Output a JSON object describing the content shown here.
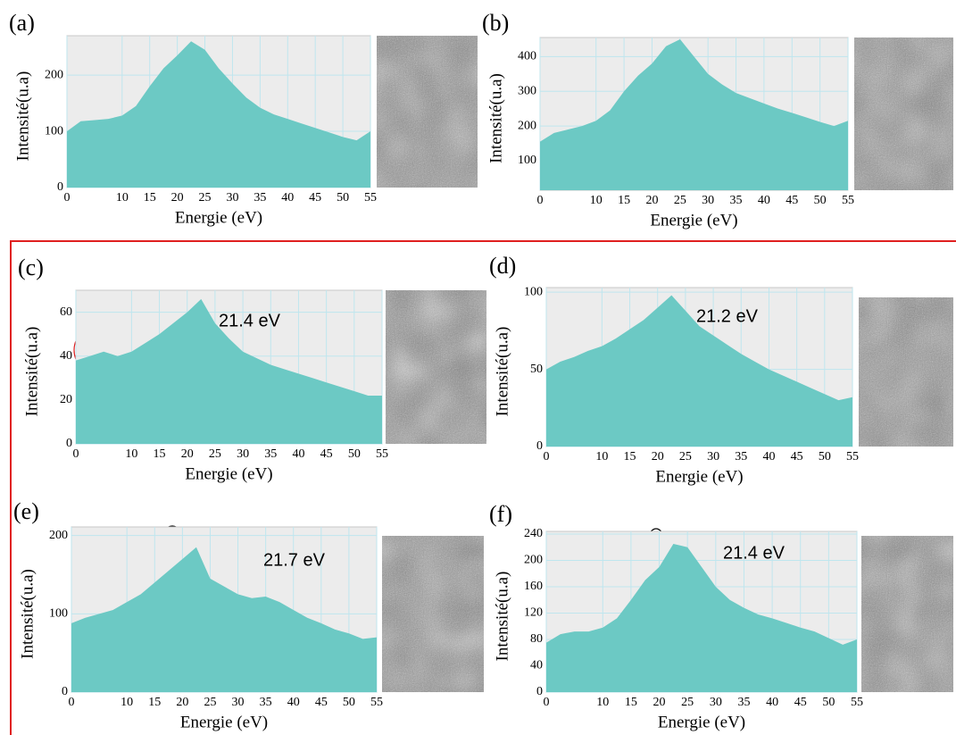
{
  "chart_data": [
    {
      "type": "area",
      "label": "(a)",
      "xlabel": "Energie (eV)",
      "ylabel": "Intensité(u.a)",
      "color": "#6cc9c4",
      "grid": true,
      "x": [
        0,
        2.5,
        5,
        7.5,
        10,
        12.5,
        15,
        17.5,
        20,
        22.5,
        25,
        27.5,
        30,
        32.5,
        35,
        37.5,
        40,
        42.5,
        45,
        47.5,
        50,
        52.5,
        55
      ],
      "values": [
        100,
        118,
        120,
        122,
        128,
        145,
        180,
        212,
        235,
        260,
        245,
        212,
        185,
        160,
        142,
        130,
        122,
        114,
        106,
        98,
        90,
        84,
        100
      ],
      "xlim": [
        0,
        55
      ],
      "xticks": [
        0,
        10,
        15,
        20,
        25,
        30,
        35,
        40,
        45,
        50,
        55
      ],
      "ylim": [
        0,
        270
      ],
      "yticks": [
        0,
        100,
        200
      ]
    },
    {
      "type": "area",
      "label": "(b)",
      "xlabel": "Energie (eV)",
      "ylabel": "Intensité(u.a)",
      "color": "#6cc9c4",
      "grid": true,
      "x": [
        0,
        2.5,
        5,
        7.5,
        10,
        12.5,
        15,
        17.5,
        20,
        22.5,
        25,
        27.5,
        30,
        32.5,
        35,
        37.5,
        40,
        42.5,
        45,
        47.5,
        50,
        52.5,
        55
      ],
      "values": [
        155,
        180,
        190,
        200,
        215,
        245,
        300,
        345,
        380,
        430,
        450,
        400,
        350,
        320,
        295,
        280,
        265,
        250,
        238,
        225,
        212,
        200,
        215
      ],
      "xlim": [
        0,
        55
      ],
      "xticks": [
        0,
        10,
        15,
        20,
        25,
        30,
        35,
        40,
        45,
        50,
        55
      ],
      "ylim": [
        15,
        455
      ],
      "yticks": [
        100,
        200,
        300,
        400
      ]
    },
    {
      "type": "area",
      "label": "(c)",
      "xlabel": "Energie (eV)",
      "ylabel": "Intensité(u.a)",
      "color": "#6cc9c4",
      "grid": true,
      "annotation": "21.4 eV",
      "x": [
        0,
        2.5,
        5,
        7.5,
        10,
        12.5,
        15,
        17.5,
        20,
        22.5,
        25,
        27.5,
        30,
        32.5,
        35,
        37.5,
        40,
        42.5,
        45,
        47.5,
        50,
        52.5,
        55
      ],
      "values": [
        38,
        40,
        42,
        40,
        42,
        46,
        50,
        55,
        60,
        66,
        55,
        48,
        42,
        39,
        36,
        34,
        32,
        30,
        28,
        26,
        24,
        22,
        22
      ],
      "xlim": [
        0,
        55
      ],
      "xticks": [
        0,
        10,
        15,
        20,
        25,
        30,
        35,
        40,
        45,
        50,
        55
      ],
      "ylim": [
        0,
        70
      ],
      "yticks": [
        0,
        20,
        40,
        60
      ]
    },
    {
      "type": "area",
      "label": "(d)",
      "xlabel": "Energie (eV)",
      "ylabel": "Intensité(u.a)",
      "color": "#6cc9c4",
      "grid": true,
      "annotation": "21.2 eV",
      "x": [
        0,
        2.5,
        5,
        7.5,
        10,
        12.5,
        15,
        17.5,
        20,
        22.5,
        25,
        27.5,
        30,
        32.5,
        35,
        37.5,
        40,
        42.5,
        45,
        47.5,
        50,
        52.5,
        55
      ],
      "values": [
        50,
        55,
        58,
        62,
        65,
        70,
        76,
        82,
        90,
        98,
        88,
        78,
        72,
        66,
        60,
        55,
        50,
        46,
        42,
        38,
        34,
        30,
        32
      ],
      "xlim": [
        0,
        55
      ],
      "xticks": [
        0,
        10,
        15,
        20,
        25,
        30,
        35,
        40,
        45,
        50,
        55
      ],
      "ylim": [
        0,
        103
      ],
      "yticks": [
        0,
        50,
        100
      ]
    },
    {
      "type": "area",
      "label": "(e)",
      "xlabel": "Energie (eV)",
      "ylabel": "Intensité(u.a)",
      "color": "#6cc9c4",
      "grid": true,
      "annotation": "21.7 eV",
      "x": [
        0,
        2.5,
        5,
        7.5,
        10,
        12.5,
        15,
        17.5,
        20,
        22.5,
        25,
        27.5,
        30,
        32.5,
        35,
        37.5,
        40,
        42.5,
        45,
        47.5,
        50,
        52.5,
        55
      ],
      "values": [
        88,
        95,
        100,
        105,
        115,
        125,
        140,
        155,
        170,
        185,
        145,
        135,
        125,
        120,
        122,
        115,
        105,
        95,
        88,
        80,
        75,
        68,
        70
      ],
      "xlim": [
        0,
        55
      ],
      "xticks": [
        0,
        10,
        15,
        20,
        25,
        30,
        35,
        40,
        45,
        50,
        55
      ],
      "ylim": [
        0,
        211
      ],
      "yticks": [
        0,
        100,
        200
      ]
    },
    {
      "type": "area",
      "label": "(f)",
      "xlabel": "Energie (eV)",
      "ylabel": "Intensité(u.a)",
      "color": "#6cc9c4",
      "grid": true,
      "annotation": "21.4 eV",
      "x": [
        0,
        2.5,
        5,
        7.5,
        10,
        12.5,
        15,
        17.5,
        20,
        22.5,
        25,
        27.5,
        30,
        32.5,
        35,
        37.5,
        40,
        42.5,
        45,
        47.5,
        50,
        52.5,
        55
      ],
      "values": [
        75,
        88,
        92,
        92,
        98,
        112,
        140,
        170,
        190,
        225,
        220,
        190,
        160,
        140,
        128,
        118,
        112,
        105,
        98,
        92,
        82,
        72,
        80
      ],
      "xlim": [
        0,
        55
      ],
      "xticks": [
        0,
        10,
        15,
        20,
        25,
        30,
        35,
        40,
        45,
        50,
        55
      ],
      "ylim": [
        0,
        244
      ],
      "yticks": [
        0,
        40,
        80,
        120,
        160,
        200,
        240
      ]
    }
  ]
}
